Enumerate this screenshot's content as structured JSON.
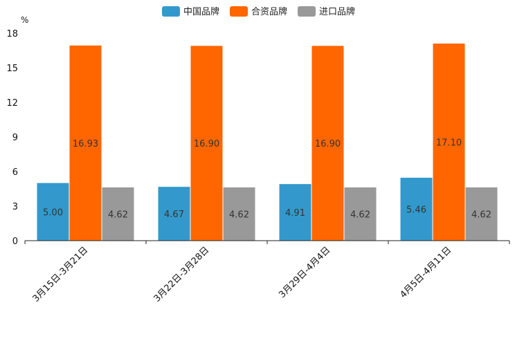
{
  "chart_data": {
    "type": "bar",
    "title": "",
    "xlabel": "",
    "ylabel": "",
    "unit_label": "%",
    "ylim": [
      0,
      18
    ],
    "yticks": [
      0,
      3,
      6,
      9,
      12,
      15,
      18
    ],
    "categories": [
      "3月15日-3月21日",
      "3月22日-3月28日",
      "3月29日-4月4日",
      "4月5日-4月11日"
    ],
    "series": [
      {
        "name": "中国品牌",
        "color": "#3399cc",
        "values": [
          5.0,
          4.67,
          4.91,
          5.46
        ],
        "labels": [
          "5.00",
          "4.67",
          "4.91",
          "5.46"
        ]
      },
      {
        "name": "合资品牌",
        "color": "#ff6600",
        "values": [
          16.93,
          16.9,
          16.9,
          17.1
        ],
        "labels": [
          "16.93",
          "16.90",
          "16.90",
          "17.10"
        ]
      },
      {
        "name": "进口品牌",
        "color": "#999999",
        "values": [
          4.62,
          4.62,
          4.62,
          4.62
        ],
        "labels": [
          "4.62",
          "4.62",
          "4.62",
          "4.62"
        ]
      }
    ],
    "legend_position": "top-center",
    "grid": false
  }
}
